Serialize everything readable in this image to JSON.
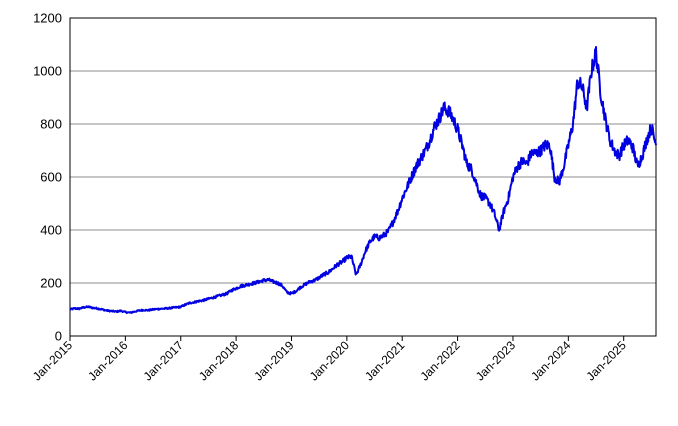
{
  "chart_data": {
    "type": "line",
    "title": "",
    "xlabel": "",
    "ylabel": "",
    "ylim": [
      0,
      1200
    ],
    "yticks": [
      0,
      200,
      400,
      600,
      800,
      1000,
      1200
    ],
    "xlim": [
      "2015-01",
      "2025-08"
    ],
    "xticks": [
      "Jan-2015",
      "Jan-2016",
      "Jan-2017",
      "Jan-2018",
      "Jan-2019",
      "Jan-2020",
      "Jan-2021",
      "Jan-2022",
      "Jan-2023",
      "Jan-2024",
      "Jan-2025"
    ],
    "grid": "horizontal",
    "legend": "none",
    "line_color": "#0000e0",
    "series": [
      {
        "x": [
          "2015-01",
          "2015-02",
          "2015-03",
          "2015-04",
          "2015-05",
          "2015-06",
          "2015-07",
          "2015-08",
          "2015-09",
          "2015-10",
          "2015-11",
          "2015-12",
          "2016-01",
          "2016-02",
          "2016-03",
          "2016-04",
          "2016-05",
          "2016-06",
          "2016-07",
          "2016-08",
          "2016-09",
          "2016-10",
          "2016-11",
          "2016-12",
          "2017-01",
          "2017-02",
          "2017-03",
          "2017-04",
          "2017-05",
          "2017-06",
          "2017-07",
          "2017-08",
          "2017-09",
          "2017-10",
          "2017-11",
          "2017-12",
          "2018-01",
          "2018-02",
          "2018-03",
          "2018-04",
          "2018-05",
          "2018-06",
          "2018-07",
          "2018-08",
          "2018-09",
          "2018-10",
          "2018-11",
          "2018-12",
          "2019-01",
          "2019-02",
          "2019-03",
          "2019-04",
          "2019-05",
          "2019-06",
          "2019-07",
          "2019-08",
          "2019-09",
          "2019-10",
          "2019-11",
          "2019-12",
          "2020-01",
          "2020-02",
          "2020-03",
          "2020-04",
          "2020-05",
          "2020-06",
          "2020-07",
          "2020-08",
          "2020-09",
          "2020-10",
          "2020-11",
          "2020-12",
          "2021-01",
          "2021-02",
          "2021-03",
          "2021-04",
          "2021-05",
          "2021-06",
          "2021-07",
          "2021-08",
          "2021-09",
          "2021-10",
          "2021-11",
          "2021-12",
          "2022-01",
          "2022-02",
          "2022-03",
          "2022-04",
          "2022-05",
          "2022-06",
          "2022-07",
          "2022-08",
          "2022-09",
          "2022-10",
          "2022-11",
          "2022-12",
          "2023-01",
          "2023-02",
          "2023-03",
          "2023-04",
          "2023-05",
          "2023-06",
          "2023-07",
          "2023-08",
          "2023-09",
          "2023-10",
          "2023-11",
          "2023-12",
          "2024-01",
          "2024-02",
          "2024-03",
          "2024-04",
          "2024-05",
          "2024-06",
          "2024-07",
          "2024-08",
          "2024-09",
          "2024-10",
          "2024-11",
          "2024-12",
          "2025-01",
          "2025-02",
          "2025-03",
          "2025-04",
          "2025-05",
          "2025-06",
          "2025-07",
          "2025-08"
        ],
        "y": [
          100,
          104,
          103,
          108,
          110,
          106,
          104,
          100,
          96,
          94,
          92,
          95,
          90,
          88,
          92,
          96,
          98,
          97,
          100,
          102,
          103,
          104,
          106,
          108,
          110,
          118,
          125,
          128,
          132,
          135,
          140,
          145,
          150,
          155,
          160,
          172,
          180,
          188,
          192,
          196,
          200,
          205,
          210,
          212,
          205,
          200,
          190,
          165,
          160,
          170,
          185,
          195,
          205,
          210,
          220,
          232,
          240,
          255,
          270,
          280,
          295,
          300,
          230,
          270,
          320,
          355,
          375,
          370,
          380,
          395,
          430,
          470,
          520,
          560,
          600,
          640,
          670,
          700,
          740,
          790,
          820,
          860,
          850,
          820,
          780,
          720,
          650,
          630,
          580,
          530,
          520,
          500,
          460,
          400,
          470,
          520,
          600,
          640,
          660,
          650,
          690,
          690,
          700,
          720,
          720,
          600,
          580,
          640,
          720,
          800,
          960,
          940,
          860,
          1000,
          1070,
          920,
          820,
          740,
          700,
          680,
          720,
          740,
          710,
          640,
          680,
          740,
          790,
          720
        ]
      }
    ]
  }
}
